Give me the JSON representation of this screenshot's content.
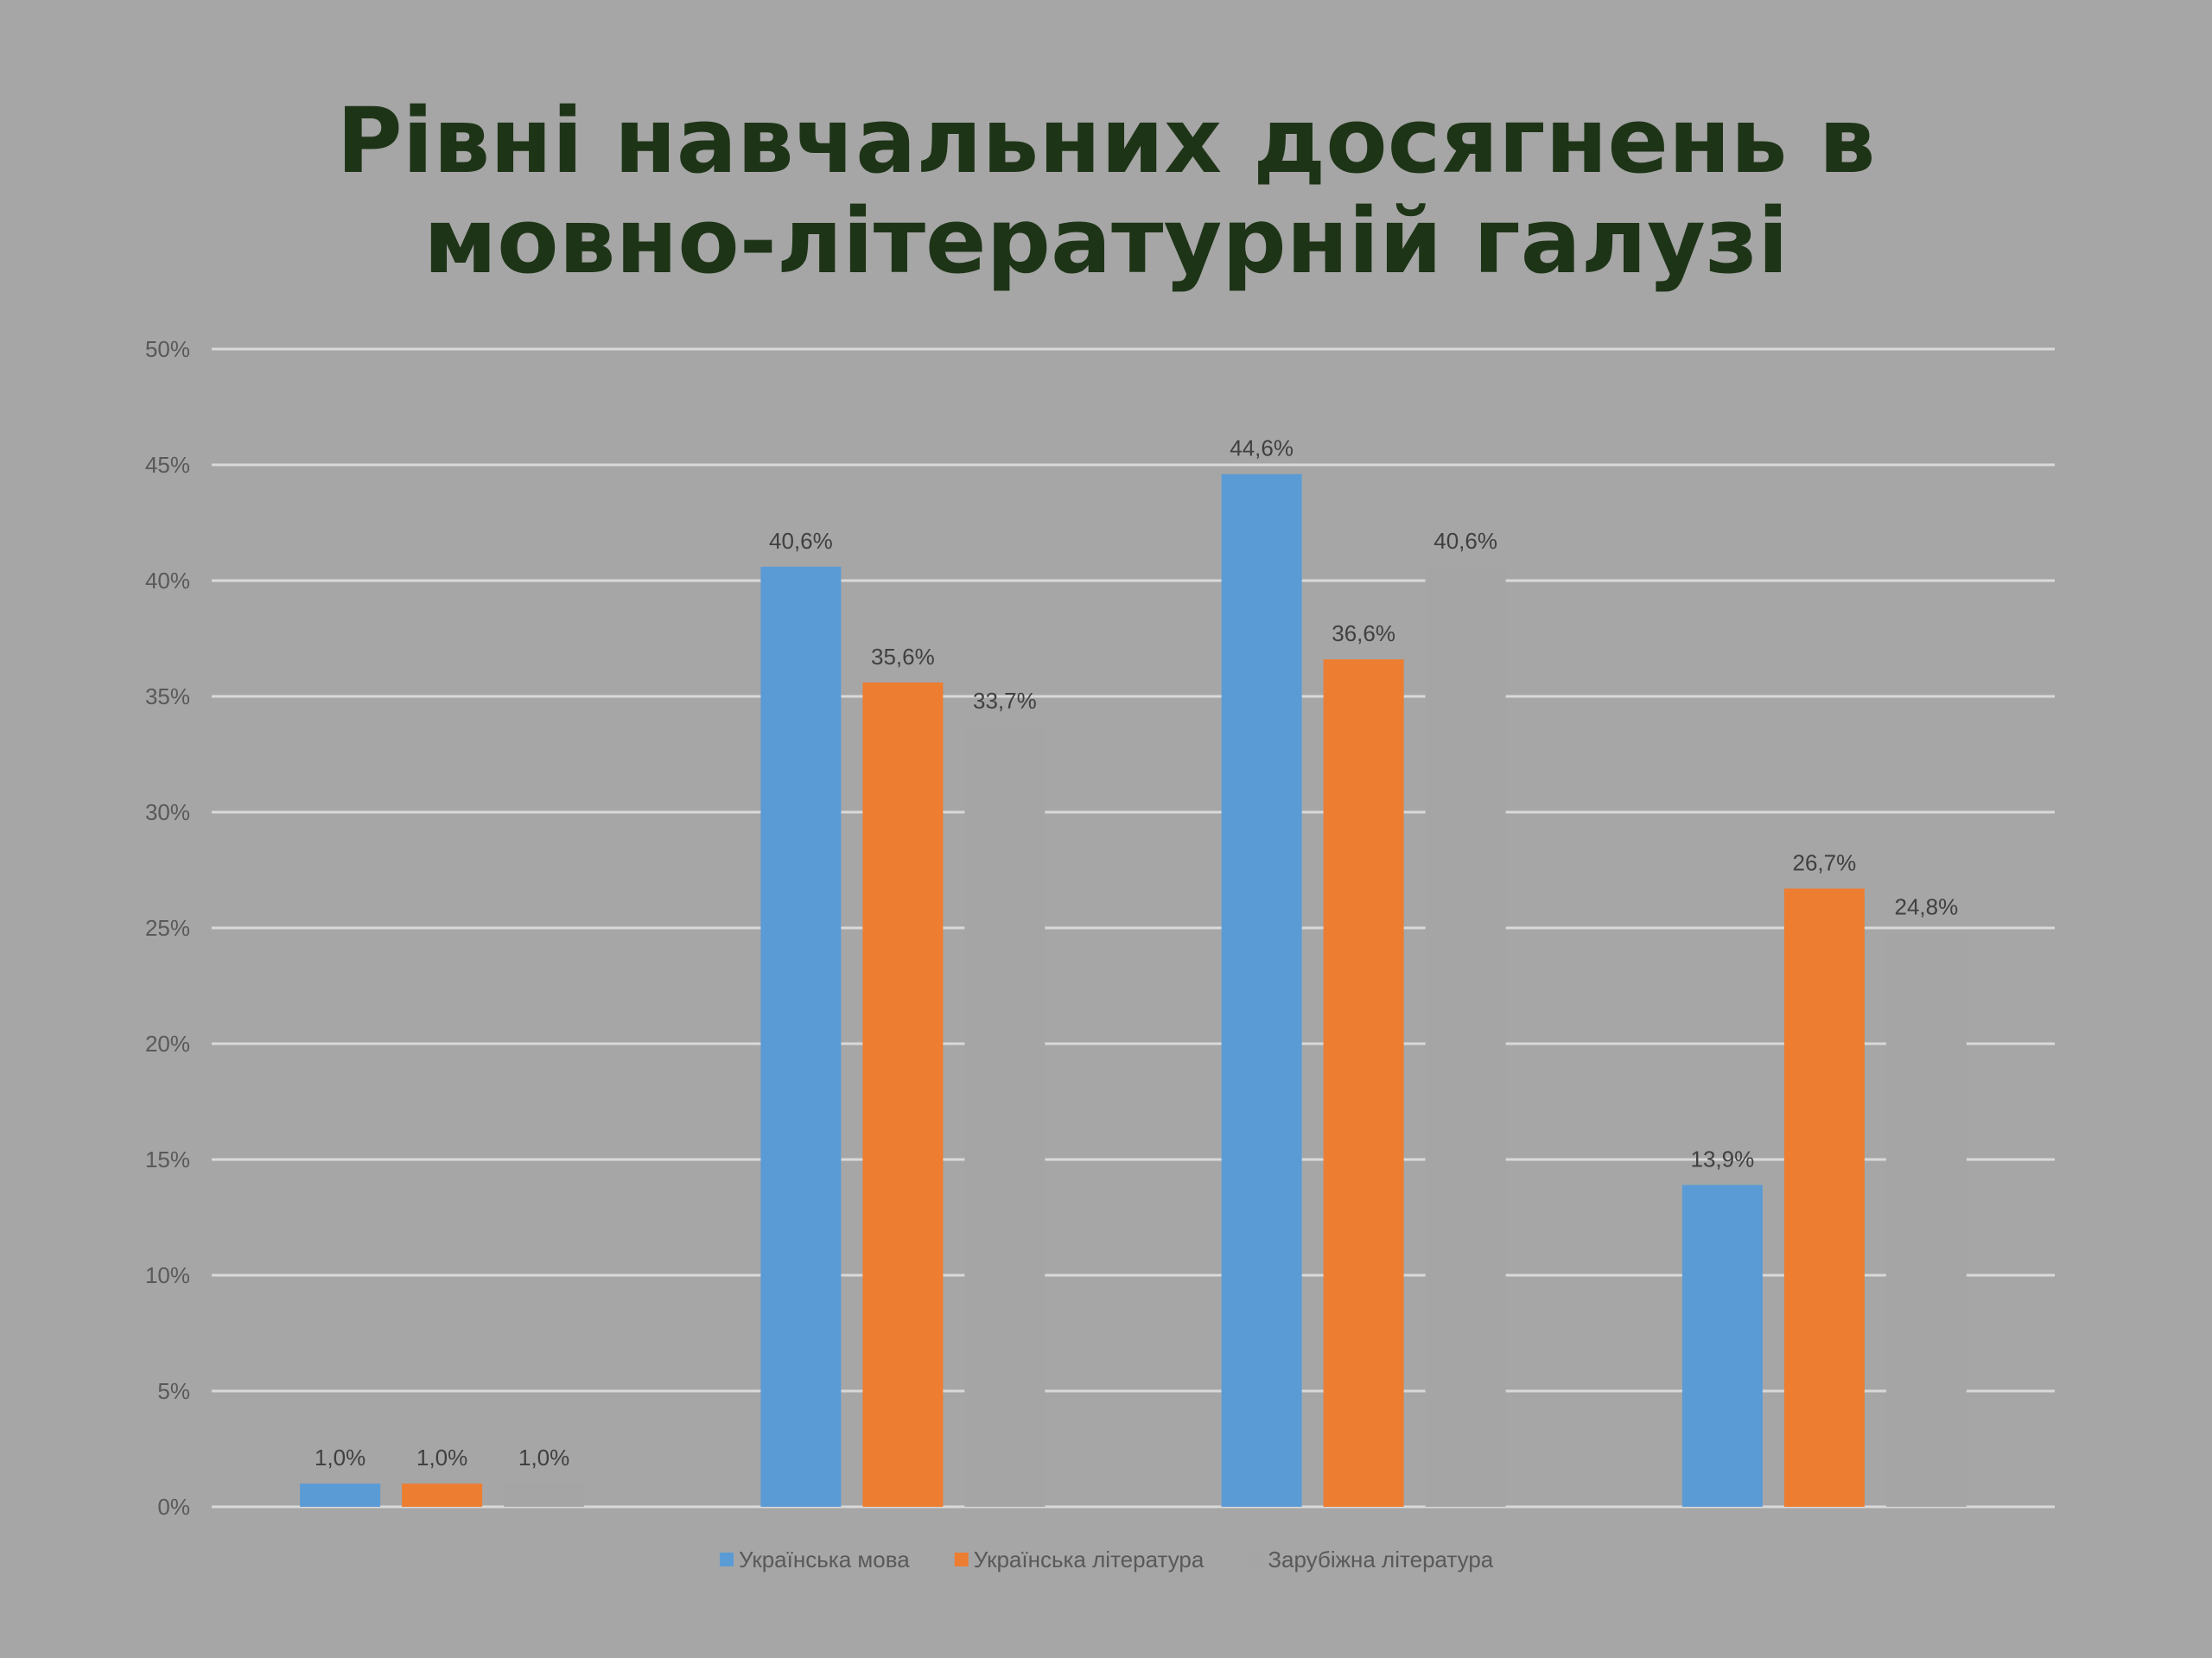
{
  "title_lines": [
    "Рівні навчальних досягнень в",
    "мовно-літературній галузі"
  ],
  "chart_data": {
    "type": "bar",
    "title": "Рівні навчальних досягнень в мовно-літературній галузі",
    "categories": [
      "",
      "",
      "",
      ""
    ],
    "series": [
      {
        "name": "Українська мова",
        "color": "#5b9bd5",
        "values": [
          1.0,
          40.6,
          44.6,
          13.9
        ],
        "labels": [
          "1,0%",
          "40,6%",
          "44,6%",
          "13,9%"
        ]
      },
      {
        "name": "Українська література",
        "color": "#ed7d31",
        "values": [
          1.0,
          35.6,
          36.6,
          26.7
        ],
        "labels": [
          "1,0%",
          "35,6%",
          "36,6%",
          "26,7%"
        ]
      },
      {
        "name": "Зарубіжна література",
        "color": "#a5a5a5",
        "values": [
          1.0,
          33.7,
          40.6,
          24.8
        ],
        "labels": [
          "1,0%",
          "33,7%",
          "40,6%",
          "24,8%"
        ]
      }
    ],
    "ylim": [
      0,
      50
    ],
    "yticks": [
      "0%",
      "5%",
      "10%",
      "15%",
      "20%",
      "25%",
      "30%",
      "35%",
      "40%",
      "45%",
      "50%"
    ],
    "xlabel": "",
    "ylabel": "",
    "grid": true,
    "legend": "bottom"
  }
}
